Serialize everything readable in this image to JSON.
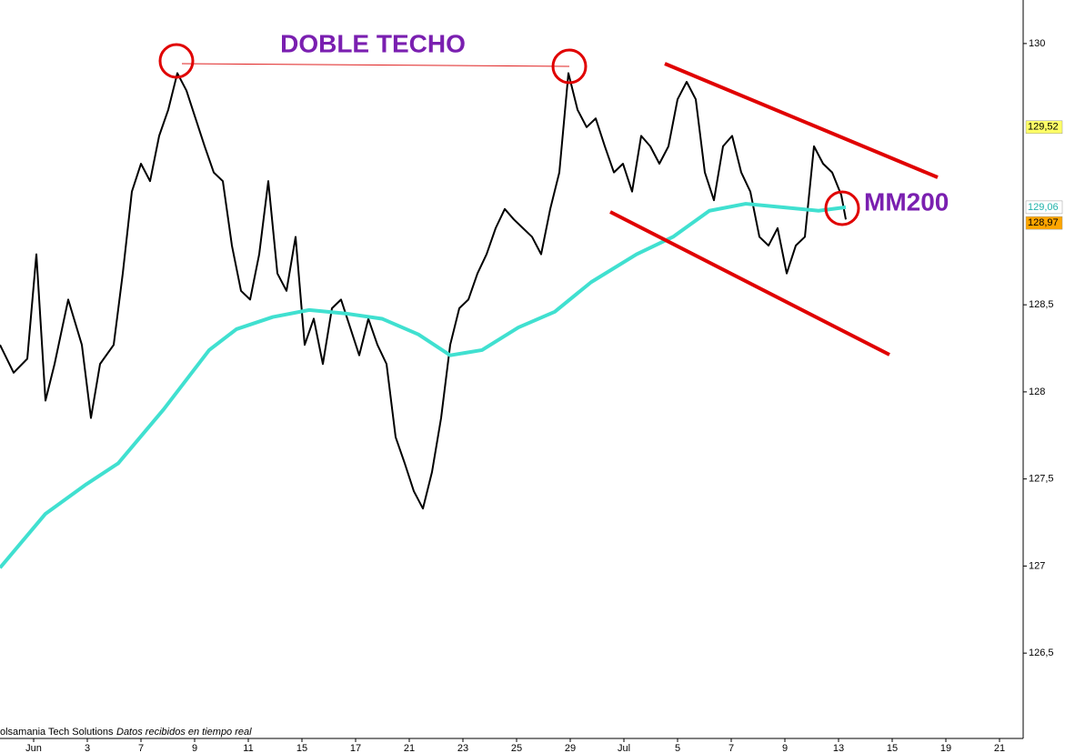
{
  "chart_data": {
    "type": "line",
    "title": "DOBLE TECHO",
    "annotations": [
      "MM200"
    ],
    "footer": [
      "olsamania Tech Solutions",
      "Datos recibidos en tiempo real"
    ],
    "xlim": [
      0,
      112.5
    ],
    "ylim": [
      126.01,
      130.25
    ],
    "xticks": [
      {
        "value": 3.7,
        "label": "Jun"
      },
      {
        "value": 9.6,
        "label": "3"
      },
      {
        "value": 15.5,
        "label": "7"
      },
      {
        "value": 21.4,
        "label": "9"
      },
      {
        "value": 27.3,
        "label": "11"
      },
      {
        "value": 33.2,
        "label": "15"
      },
      {
        "value": 39.1,
        "label": "17"
      },
      {
        "value": 45,
        "label": "21"
      },
      {
        "value": 50.9,
        "label": "23"
      },
      {
        "value": 56.8,
        "label": "25"
      },
      {
        "value": 62.7,
        "label": "29"
      },
      {
        "value": 68.6,
        "label": "Jul"
      },
      {
        "value": 74.5,
        "label": "5"
      },
      {
        "value": 80.4,
        "label": "7"
      },
      {
        "value": 86.3,
        "label": "9"
      },
      {
        "value": 92.2,
        "label": "13"
      },
      {
        "value": 98.1,
        "label": "15"
      },
      {
        "value": 104,
        "label": "19"
      },
      {
        "value": 109.9,
        "label": "21"
      }
    ],
    "yticks": [
      130,
      {
        "value": 128.5,
        "label": "128,5"
      },
      128,
      {
        "value": 127.5,
        "label": "127,5"
      },
      127,
      {
        "value": 126.5,
        "label": "126,5"
      }
    ],
    "series": [
      {
        "color": "#000000",
        "width": 2,
        "x": [
          0,
          1.5,
          3,
          4,
          5,
          6,
          7.5,
          9,
          10,
          11,
          12.5,
          13.5,
          14.5,
          15.5,
          16.5,
          17.5,
          18.5,
          19.5,
          20.5,
          21.5,
          22.5,
          23.5,
          24.5,
          25.5,
          26.5,
          27.5,
          28.5,
          29.5,
          30.5,
          31.5,
          32.5,
          33.5,
          34.5,
          35.5,
          36.5,
          37.5,
          38.5,
          39.5,
          40.5,
          41.5,
          42.5,
          43.5,
          44.5,
          45.5,
          46.5,
          47.5,
          48.5,
          49.5,
          50.5,
          51.5,
          52.5,
          53.5,
          54.5,
          55.5,
          56.5,
          57.5,
          58.5,
          59.5,
          60.5,
          61.5,
          62.5,
          63.5,
          64.5,
          65.5,
          66.5,
          67.5,
          68.5,
          69.5,
          70.5,
          71.5,
          72.5,
          73.5,
          74.5,
          75.5,
          76.5,
          77.5,
          78.5,
          79.5,
          80.5,
          81.5,
          82.5,
          83.5,
          84.5,
          85.5,
          86.5,
          87.5,
          88.5,
          89.5,
          90.5,
          91.5,
          92.5,
          93
        ],
        "values": [
          128.27,
          128.11,
          128.19,
          128.79,
          127.95,
          128.16,
          128.53,
          128.27,
          127.85,
          128.16,
          128.27,
          128.68,
          129.15,
          129.31,
          129.21,
          129.47,
          129.62,
          129.83,
          129.73,
          129.57,
          129.41,
          129.26,
          129.21,
          128.84,
          128.58,
          128.53,
          128.79,
          129.21,
          128.68,
          128.58,
          128.89,
          128.27,
          128.42,
          128.16,
          128.48,
          128.53,
          128.37,
          128.21,
          128.42,
          128.27,
          128.16,
          127.74,
          127.59,
          127.43,
          127.33,
          127.54,
          127.85,
          128.27,
          128.48,
          128.53,
          128.68,
          128.79,
          128.94,
          129.05,
          128.99,
          128.94,
          128.89,
          128.79,
          129.05,
          129.26,
          129.83,
          129.62,
          129.52,
          129.57,
          129.41,
          129.26,
          129.31,
          129.15,
          129.47,
          129.41,
          129.31,
          129.41,
          129.68,
          129.78,
          129.68,
          129.26,
          129.1,
          129.41,
          129.47,
          129.26,
          129.15,
          128.89,
          128.84,
          128.94,
          128.68,
          128.84,
          128.89,
          129.41,
          129.31,
          129.26,
          129.13,
          128.99
        ]
      },
      {
        "color": "#40e0d0",
        "width": 4,
        "x": [
          0,
          5,
          9.5,
          13,
          18,
          23,
          26,
          30,
          34,
          38,
          42,
          46,
          49.5,
          53,
          57,
          61,
          65,
          70,
          74,
          78,
          82,
          86,
          90,
          93
        ],
        "values": [
          126.99,
          127.3,
          127.47,
          127.59,
          127.9,
          128.24,
          128.36,
          128.43,
          128.47,
          128.45,
          128.42,
          128.33,
          128.21,
          128.24,
          128.37,
          128.46,
          128.63,
          128.79,
          128.89,
          129.04,
          129.08,
          129.06,
          129.04,
          129.06
        ]
      }
    ],
    "markers": [
      {
        "value": 129.52,
        "label": "129,52",
        "background": "#ffff66",
        "text_color": "#000000"
      },
      {
        "value": 129.06,
        "label": "129,06",
        "background": "#ffffff",
        "text_color": "#20b2aa"
      },
      {
        "value": 128.97,
        "label": "128,97",
        "background": "#ffa500",
        "text_color": "#000000"
      }
    ]
  }
}
